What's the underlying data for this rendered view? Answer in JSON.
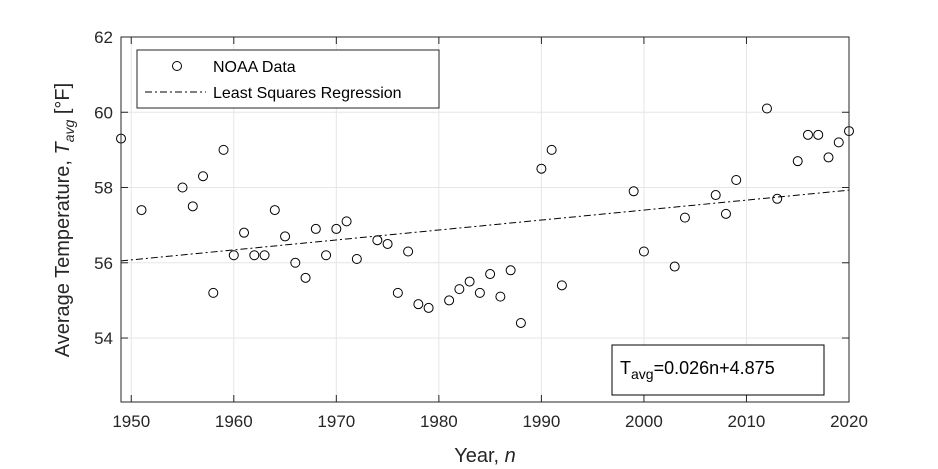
{
  "chart_data": {
    "type": "scatter",
    "xlabel_main": "Year, ",
    "xlabel_var": "n",
    "ylabel_main": "Average Temperature, ",
    "ylabel_var": "T",
    "ylabel_sub": "avg",
    "ylabel_unit": " [°F]",
    "xlim": [
      1949,
      2020
    ],
    "ylim": [
      52.3,
      62
    ],
    "xticks": [
      1950,
      1960,
      1970,
      1980,
      1990,
      2000,
      2010,
      2020
    ],
    "yticks": [
      54,
      56,
      58,
      60,
      62
    ],
    "grid": true,
    "legend_position": "top-left",
    "legend": [
      {
        "label": "NOAA Data",
        "marker": "circle"
      },
      {
        "label": "Least Squares Regression",
        "line": "dash-dot"
      }
    ],
    "annotation": {
      "T": "T",
      "sub": "avg",
      "rest": "=0.026n+4.875"
    },
    "regression": {
      "x": [
        1949,
        2020
      ],
      "y": [
        56.05,
        57.93
      ]
    },
    "series": [
      {
        "name": "NOAA Data",
        "points": [
          [
            1949,
            59.3
          ],
          [
            1951,
            57.4
          ],
          [
            1955,
            58.0
          ],
          [
            1956,
            57.5
          ],
          [
            1957,
            58.3
          ],
          [
            1958,
            55.2
          ],
          [
            1959,
            59.0
          ],
          [
            1960,
            56.2
          ],
          [
            1961,
            56.8
          ],
          [
            1962,
            56.2
          ],
          [
            1963,
            56.2
          ],
          [
            1964,
            57.4
          ],
          [
            1965,
            56.7
          ],
          [
            1966,
            56.0
          ],
          [
            1967,
            55.6
          ],
          [
            1968,
            56.9
          ],
          [
            1969,
            56.2
          ],
          [
            1970,
            56.9
          ],
          [
            1971,
            57.1
          ],
          [
            1972,
            56.1
          ],
          [
            1974,
            56.6
          ],
          [
            1975,
            56.5
          ],
          [
            1976,
            55.2
          ],
          [
            1977,
            56.3
          ],
          [
            1978,
            54.9
          ],
          [
            1979,
            54.8
          ],
          [
            1981,
            55.0
          ],
          [
            1982,
            55.3
          ],
          [
            1983,
            55.5
          ],
          [
            1984,
            55.2
          ],
          [
            1985,
            55.7
          ],
          [
            1986,
            55.1
          ],
          [
            1987,
            55.8
          ],
          [
            1988,
            54.4
          ],
          [
            1990,
            58.5
          ],
          [
            1991,
            59.0
          ],
          [
            1992,
            55.4
          ],
          [
            1999,
            57.9
          ],
          [
            2000,
            56.3
          ],
          [
            2003,
            55.9
          ],
          [
            2004,
            57.2
          ],
          [
            2007,
            57.8
          ],
          [
            2008,
            57.3
          ],
          [
            2009,
            58.2
          ],
          [
            2012,
            60.1
          ],
          [
            2013,
            57.7
          ],
          [
            2015,
            58.7
          ],
          [
            2016,
            59.4
          ],
          [
            2017,
            59.4
          ],
          [
            2018,
            58.8
          ],
          [
            2019,
            59.2
          ],
          [
            2020,
            59.5
          ]
        ]
      }
    ]
  }
}
